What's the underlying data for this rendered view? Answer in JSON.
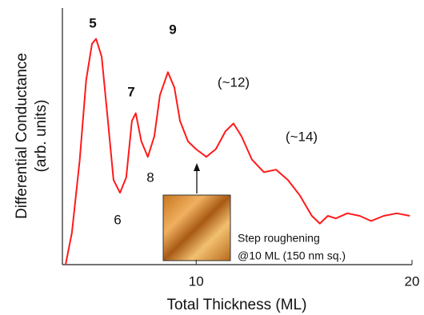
{
  "chart_data": {
    "type": "line",
    "ylabel": "Differential Conductance",
    "ylabel_sub": "(arb. units)",
    "xlabel": "Total Thickness (ML)",
    "x": [
      3.95,
      4.24,
      4.6,
      4.9,
      5.17,
      5.36,
      5.62,
      5.91,
      6.17,
      6.47,
      6.76,
      7.02,
      7.2,
      7.46,
      7.76,
      8.06,
      8.32,
      8.69,
      8.99,
      9.25,
      9.62,
      9.99,
      10.47,
      10.91,
      11.36,
      11.73,
      12.1,
      12.58,
      13.14,
      13.7,
      14.25,
      14.8,
      15.36,
      15.73,
      16.1,
      16.47,
      17.0,
      17.58,
      18.1,
      18.69,
      19.3,
      19.9
    ],
    "series": [
      {
        "name": "Differential Conductance",
        "color": "#ff1a1a",
        "values": [
          0,
          12.5,
          40.6,
          71.9,
          86,
          88,
          81,
          56,
          33,
          28,
          34,
          56,
          59,
          48,
          42,
          50,
          66,
          75,
          69,
          56,
          48,
          45,
          42,
          45,
          52,
          55,
          50,
          41,
          36,
          37,
          33,
          27,
          19,
          16,
          19,
          18,
          20,
          19,
          17,
          19,
          20,
          19
        ]
      }
    ],
    "xlim": [
      3.8,
      20
    ],
    "xticks": [
      10,
      20
    ],
    "ylim": [
      0,
      100
    ],
    "annotations": [
      "5",
      "6",
      "7",
      "8",
      "9",
      "(~12)",
      "(~14)",
      "Step roughening",
      "@10 ML (150 nm sq.)"
    ]
  }
}
